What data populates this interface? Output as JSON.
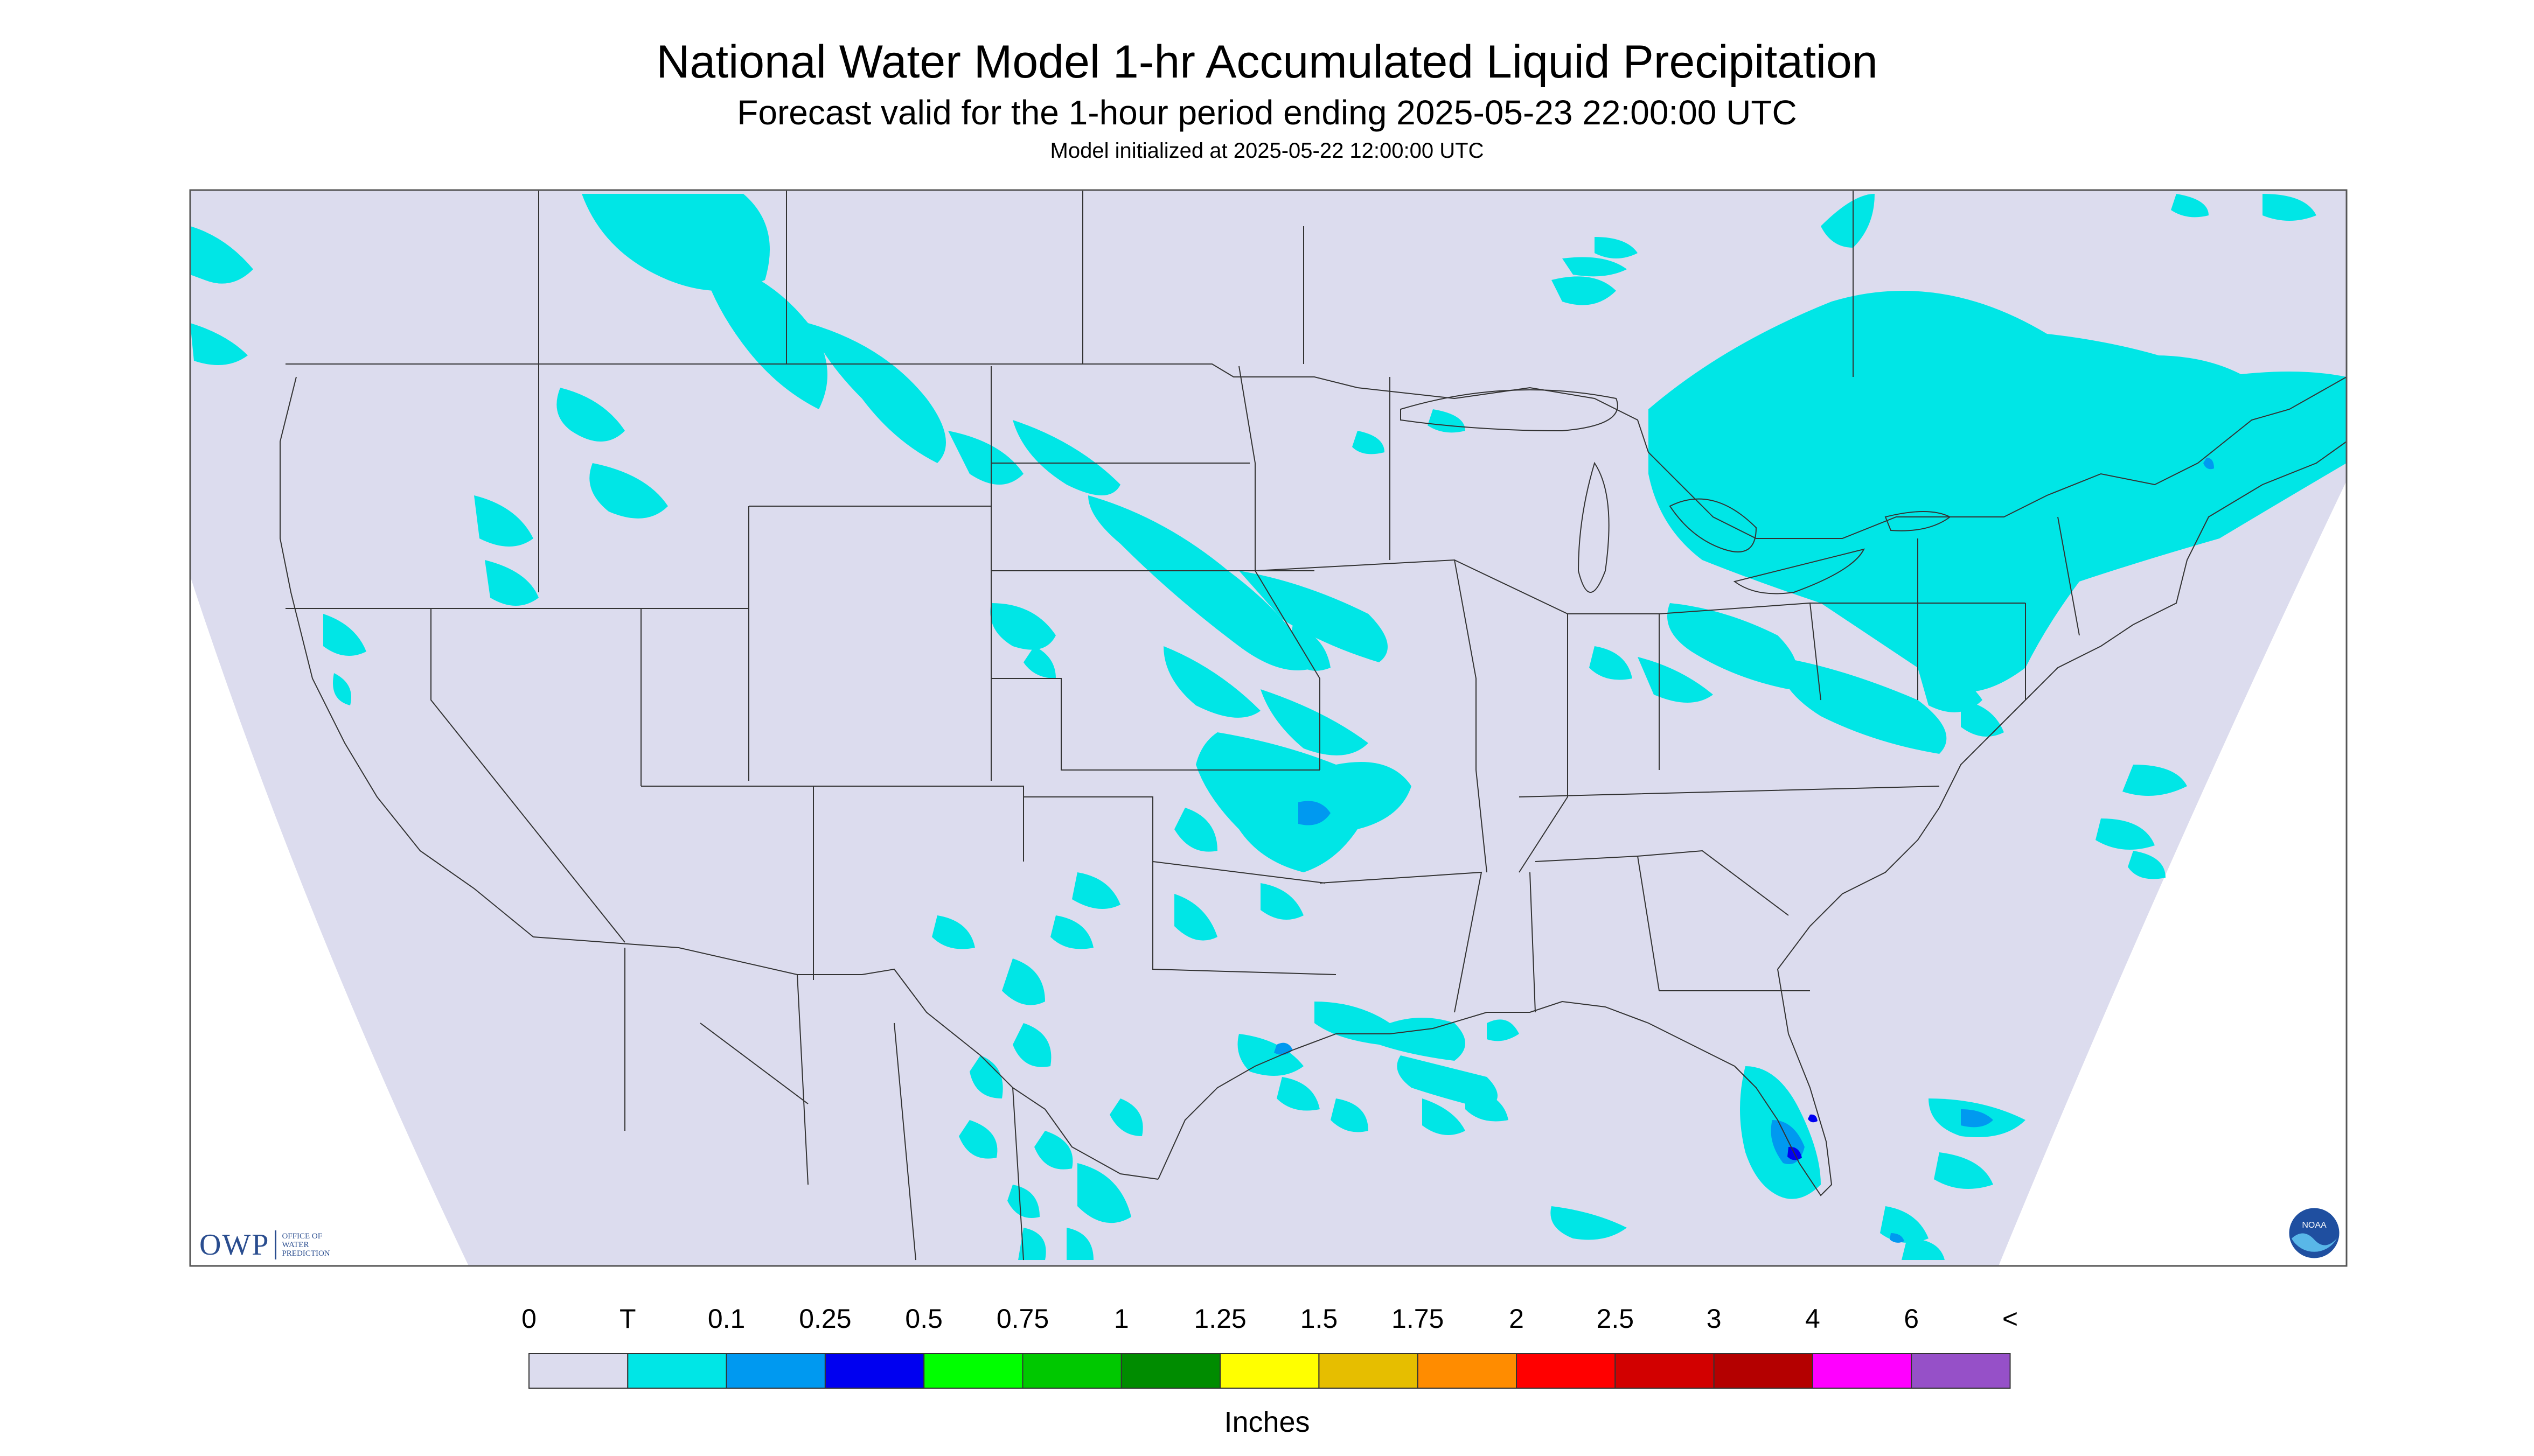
{
  "title": "National Water Model 1-hr Accumulated Liquid Precipitation",
  "subtitle": "Forecast valid for the 1-hour period ending 2025-05-23 22:00:00 UTC",
  "init_line": "Model initialized at 2025-05-22 12:00:00 UTC",
  "legend": {
    "units": "Inches",
    "labels": [
      "0",
      "T",
      "0.1",
      "0.25",
      "0.5",
      "0.75",
      "1",
      "1.25",
      "1.5",
      "1.75",
      "2",
      "2.5",
      "3",
      "4",
      "6",
      "<"
    ],
    "colors": [
      "#dcdcee",
      "#00e6e6",
      "#0099f0",
      "#0000f0",
      "#00ff00",
      "#00c800",
      "#008c00",
      "#ffff00",
      "#e6be00",
      "#ff8c00",
      "#ff0000",
      "#d20000",
      "#b40000",
      "#ff00ff",
      "#9650c8"
    ]
  },
  "logos": {
    "owp_text": "OWP",
    "owp_small": [
      "OFFICE OF",
      "WATER",
      "PREDICTION"
    ],
    "noaa_text": "NOAA"
  },
  "map": {
    "domain_color": "#dcdcee",
    "outside_color": "#ffffff",
    "precip_trace_color": "#00e6e6",
    "precip_light_color": "#0099f0",
    "precip_moderate_color": "#0000f0"
  }
}
